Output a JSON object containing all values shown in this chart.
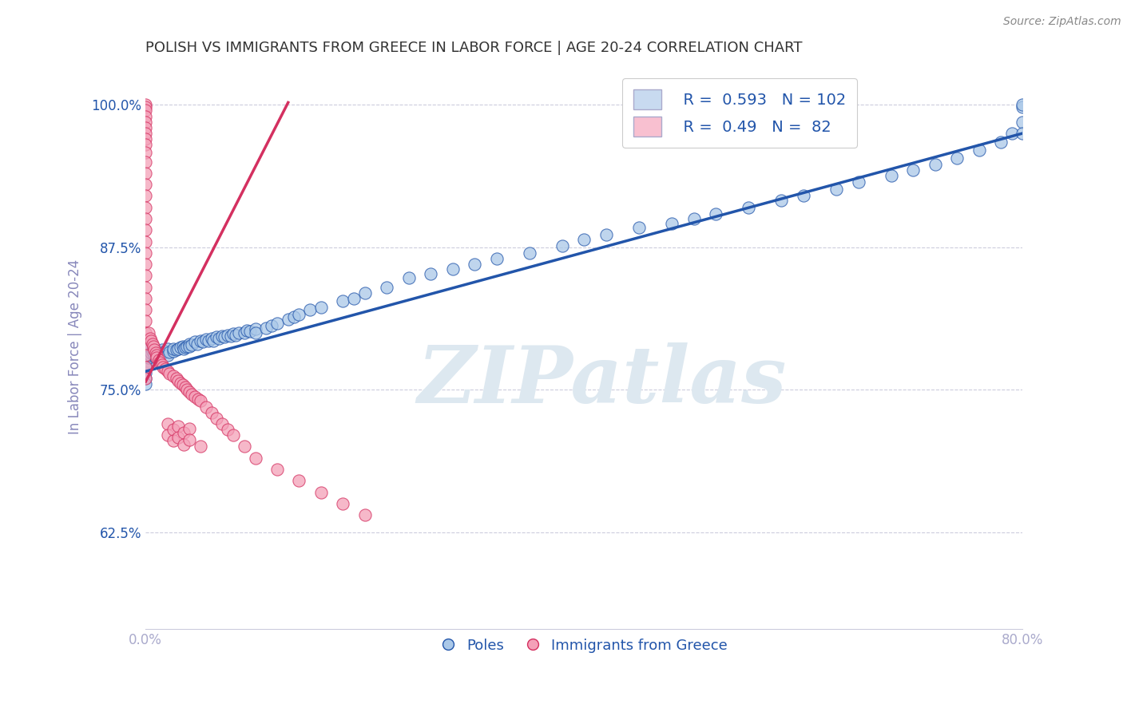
{
  "title": "POLISH VS IMMIGRANTS FROM GREECE IN LABOR FORCE | AGE 20-24 CORRELATION CHART",
  "source": "Source: ZipAtlas.com",
  "ylabel": "In Labor Force | Age 20-24",
  "legend_label_blue": "Poles",
  "legend_label_pink": "Immigrants from Greece",
  "R_blue": 0.593,
  "N_blue": 102,
  "R_pink": 0.49,
  "N_pink": 82,
  "xlim": [
    0.0,
    0.8
  ],
  "ylim": [
    0.54,
    1.035
  ],
  "yticks": [
    0.625,
    0.75,
    0.875,
    1.0
  ],
  "ytick_labels": [
    "62.5%",
    "75.0%",
    "87.5%",
    "100.0%"
  ],
  "xticks": [
    0.0,
    0.1,
    0.2,
    0.3,
    0.4,
    0.5,
    0.6,
    0.7,
    0.8
  ],
  "xtick_labels": [
    "0.0%",
    "",
    "",
    "",
    "",
    "",
    "",
    "",
    "80.0%"
  ],
  "title_color": "#333333",
  "source_color": "#888888",
  "blue_scatter_color": "#aac8e8",
  "pink_scatter_color": "#f4a0b8",
  "blue_line_color": "#2255aa",
  "pink_line_color": "#d43060",
  "axis_label_color": "#8888bb",
  "grid_color": "#ccccdd",
  "tick_color": "#aaaacc",
  "watermark_color": "#dde8f0",
  "blue_scatter_x": [
    0.0,
    0.0,
    0.0,
    0.0,
    0.0,
    0.0,
    0.0,
    0.0,
    0.0,
    0.0,
    0.003,
    0.004,
    0.005,
    0.006,
    0.007,
    0.008,
    0.009,
    0.01,
    0.01,
    0.012,
    0.013,
    0.015,
    0.016,
    0.018,
    0.02,
    0.02,
    0.022,
    0.025,
    0.025,
    0.028,
    0.03,
    0.032,
    0.034,
    0.035,
    0.036,
    0.038,
    0.04,
    0.04,
    0.042,
    0.045,
    0.047,
    0.05,
    0.052,
    0.055,
    0.057,
    0.06,
    0.062,
    0.065,
    0.067,
    0.07,
    0.072,
    0.075,
    0.078,
    0.08,
    0.082,
    0.085,
    0.09,
    0.092,
    0.095,
    0.1,
    0.1,
    0.11,
    0.115,
    0.12,
    0.13,
    0.135,
    0.14,
    0.15,
    0.16,
    0.18,
    0.19,
    0.2,
    0.22,
    0.24,
    0.26,
    0.28,
    0.3,
    0.32,
    0.35,
    0.38,
    0.4,
    0.42,
    0.45,
    0.48,
    0.5,
    0.52,
    0.55,
    0.58,
    0.6,
    0.63,
    0.65,
    0.68,
    0.7,
    0.72,
    0.74,
    0.76,
    0.78,
    0.79,
    0.8,
    0.8,
    0.8,
    0.8
  ],
  "blue_scatter_y": [
    0.775,
    0.78,
    0.782,
    0.785,
    0.788,
    0.77,
    0.765,
    0.76,
    0.755,
    0.772,
    0.778,
    0.78,
    0.782,
    0.784,
    0.785,
    0.78,
    0.778,
    0.78,
    0.782,
    0.784,
    0.783,
    0.785,
    0.782,
    0.784,
    0.786,
    0.78,
    0.783,
    0.784,
    0.786,
    0.785,
    0.786,
    0.787,
    0.788,
    0.786,
    0.787,
    0.788,
    0.79,
    0.788,
    0.789,
    0.792,
    0.79,
    0.793,
    0.792,
    0.794,
    0.793,
    0.795,
    0.793,
    0.796,
    0.795,
    0.797,
    0.796,
    0.798,
    0.797,
    0.799,
    0.798,
    0.8,
    0.8,
    0.802,
    0.801,
    0.803,
    0.8,
    0.804,
    0.806,
    0.808,
    0.812,
    0.814,
    0.816,
    0.82,
    0.822,
    0.828,
    0.83,
    0.835,
    0.84,
    0.848,
    0.852,
    0.856,
    0.86,
    0.865,
    0.87,
    0.876,
    0.882,
    0.886,
    0.892,
    0.896,
    0.9,
    0.904,
    0.91,
    0.916,
    0.92,
    0.926,
    0.932,
    0.938,
    0.943,
    0.948,
    0.953,
    0.96,
    0.967,
    0.975,
    0.985,
    0.998,
    1.0,
    0.975
  ],
  "pink_scatter_x": [
    0.0,
    0.0,
    0.0,
    0.0,
    0.0,
    0.0,
    0.0,
    0.0,
    0.0,
    0.0,
    0.0,
    0.0,
    0.0,
    0.0,
    0.0,
    0.0,
    0.0,
    0.0,
    0.0,
    0.0,
    0.0,
    0.0,
    0.0,
    0.0,
    0.0,
    0.0,
    0.0,
    0.0,
    0.0,
    0.0,
    0.003,
    0.004,
    0.005,
    0.006,
    0.007,
    0.008,
    0.009,
    0.01,
    0.01,
    0.012,
    0.013,
    0.015,
    0.016,
    0.018,
    0.02,
    0.022,
    0.025,
    0.028,
    0.03,
    0.032,
    0.034,
    0.036,
    0.038,
    0.04,
    0.042,
    0.045,
    0.048,
    0.05,
    0.055,
    0.06,
    0.065,
    0.07,
    0.075,
    0.08,
    0.09,
    0.1,
    0.12,
    0.14,
    0.16,
    0.18,
    0.2,
    0.02,
    0.02,
    0.025,
    0.025,
    0.03,
    0.03,
    0.035,
    0.035,
    0.04,
    0.04,
    0.05
  ],
  "pink_scatter_y": [
    1.0,
    0.998,
    0.995,
    0.99,
    0.985,
    0.98,
    0.975,
    0.97,
    0.965,
    0.958,
    0.95,
    0.94,
    0.93,
    0.92,
    0.91,
    0.9,
    0.89,
    0.88,
    0.87,
    0.86,
    0.85,
    0.84,
    0.83,
    0.82,
    0.81,
    0.8,
    0.79,
    0.78,
    0.77,
    0.76,
    0.8,
    0.795,
    0.793,
    0.79,
    0.788,
    0.785,
    0.782,
    0.78,
    0.778,
    0.776,
    0.774,
    0.772,
    0.77,
    0.768,
    0.766,
    0.764,
    0.762,
    0.76,
    0.758,
    0.756,
    0.754,
    0.752,
    0.75,
    0.748,
    0.746,
    0.744,
    0.742,
    0.74,
    0.735,
    0.73,
    0.725,
    0.72,
    0.715,
    0.71,
    0.7,
    0.69,
    0.68,
    0.67,
    0.66,
    0.65,
    0.64,
    0.72,
    0.71,
    0.715,
    0.705,
    0.718,
    0.708,
    0.712,
    0.702,
    0.716,
    0.706,
    0.7
  ],
  "pink_line_x0": 0.0,
  "pink_line_y0": 0.757,
  "pink_line_x1": 0.13,
  "pink_line_y1": 1.002,
  "blue_line_x0": 0.0,
  "blue_line_y0": 0.766,
  "blue_line_x1": 0.8,
  "blue_line_y1": 0.975
}
